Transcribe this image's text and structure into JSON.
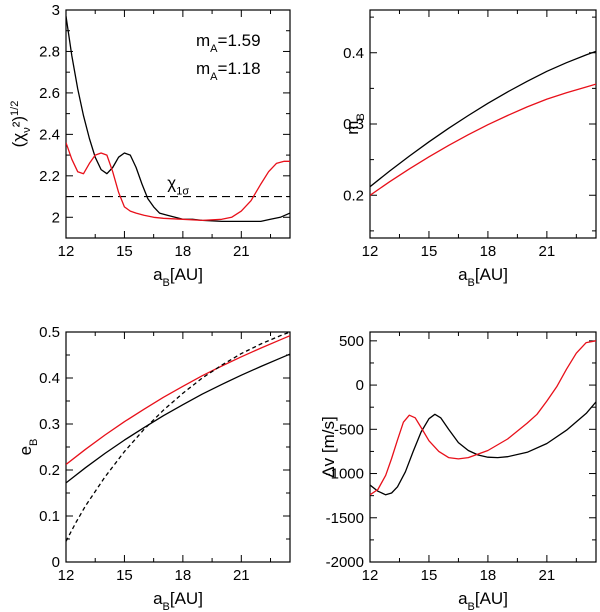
{
  "chart_data": [
    {
      "type": "line",
      "xlabel": "a",
      "xlabel_sub": "B",
      "xlabel_unit": "[AU]",
      "ylabel": "(χ",
      "ylabel_sub": "ν",
      "ylabel_rest": "²)",
      "ylabel_sup": "1/2",
      "xlim": [
        12,
        23.5
      ],
      "ylim": [
        1.9,
        3.0
      ],
      "xticks": [
        12,
        15,
        18,
        21
      ],
      "yticks": [
        2,
        2.2,
        2.4,
        2.6,
        2.8,
        3
      ],
      "yticklabels": [
        "2",
        "2.2",
        "2.4",
        "2.6",
        "2.8",
        "3"
      ],
      "annotations": [
        {
          "text": "m",
          "sub": "A",
          "rest": "=1.59",
          "color": "#000000"
        },
        {
          "text": "m",
          "sub": "A",
          "rest": "=1.18",
          "color": "#e8101a"
        }
      ],
      "hline": {
        "y": 2.1,
        "style": "dashed",
        "label": "χ",
        "label_sub": "1σ"
      },
      "series": [
        {
          "color": "#000000",
          "x": [
            12,
            12.3,
            12.6,
            12.9,
            13.2,
            13.5,
            13.8,
            14.1,
            14.4,
            14.7,
            15.0,
            15.3,
            15.6,
            15.9,
            16.2,
            16.5,
            16.8,
            17.2,
            17.6,
            18.0,
            18.5,
            19,
            20,
            21,
            22,
            22.5,
            23,
            23.5
          ],
          "y": [
            2.97,
            2.78,
            2.62,
            2.49,
            2.38,
            2.29,
            2.23,
            2.21,
            2.24,
            2.29,
            2.31,
            2.3,
            2.24,
            2.16,
            2.09,
            2.05,
            2.02,
            2.01,
            2.0,
            1.99,
            1.99,
            1.985,
            1.98,
            1.98,
            1.98,
            1.99,
            2.0,
            2.02
          ]
        },
        {
          "color": "#e8101a",
          "x": [
            12,
            12.3,
            12.6,
            12.9,
            13.2,
            13.5,
            13.8,
            14.1,
            14.4,
            14.7,
            15.0,
            15.3,
            15.6,
            16.0,
            16.5,
            17,
            18,
            19,
            20,
            20.5,
            21,
            21.5,
            22,
            22.4,
            22.8,
            23.2,
            23.5
          ],
          "y": [
            2.36,
            2.28,
            2.22,
            2.21,
            2.26,
            2.3,
            2.31,
            2.3,
            2.22,
            2.12,
            2.05,
            2.03,
            2.02,
            2.01,
            2.0,
            1.995,
            1.99,
            1.985,
            1.99,
            2.0,
            2.03,
            2.08,
            2.16,
            2.22,
            2.26,
            2.27,
            2.27
          ]
        }
      ]
    },
    {
      "type": "line",
      "xlabel": "a",
      "xlabel_sub": "B",
      "xlabel_unit": "[AU]",
      "ylabel": "m",
      "ylabel_sub": "B",
      "xlim": [
        12,
        23.5
      ],
      "ylim": [
        0.14,
        0.46
      ],
      "xticks": [
        12,
        15,
        18,
        21
      ],
      "yticks": [
        0.2,
        0.3,
        0.4
      ],
      "yticklabels": [
        "0.2",
        "0.3",
        "0.4"
      ],
      "series": [
        {
          "color": "#000000",
          "x": [
            12,
            13,
            14,
            15,
            16,
            17,
            18,
            19,
            20,
            21,
            22,
            23,
            23.5
          ],
          "y": [
            0.212,
            0.234,
            0.255,
            0.275,
            0.294,
            0.312,
            0.329,
            0.345,
            0.36,
            0.374,
            0.386,
            0.397,
            0.402
          ]
        },
        {
          "color": "#e8101a",
          "x": [
            12,
            13,
            14,
            15,
            16,
            17,
            18,
            19,
            20,
            21,
            22,
            23,
            23.5
          ],
          "y": [
            0.2,
            0.219,
            0.237,
            0.254,
            0.27,
            0.285,
            0.299,
            0.312,
            0.324,
            0.335,
            0.344,
            0.352,
            0.356
          ]
        }
      ]
    },
    {
      "type": "line",
      "xlabel": "a",
      "xlabel_sub": "B",
      "xlabel_unit": "[AU]",
      "ylabel": "e",
      "ylabel_sub": "B",
      "xlim": [
        12,
        23.5
      ],
      "ylim": [
        0,
        0.5
      ],
      "xticks": [
        12,
        15,
        18,
        21
      ],
      "yticks": [
        0,
        0.1,
        0.2,
        0.3,
        0.4,
        0.5
      ],
      "yticklabels": [
        "0",
        "0.1",
        "0.2",
        "0.3",
        "0.4",
        "0.5"
      ],
      "series": [
        {
          "color": "#000000",
          "x": [
            12,
            13,
            14,
            15,
            16,
            17,
            18,
            19,
            20,
            21,
            22,
            23,
            23.5
          ],
          "y": [
            0.172,
            0.205,
            0.236,
            0.265,
            0.292,
            0.318,
            0.342,
            0.365,
            0.386,
            0.406,
            0.425,
            0.443,
            0.452
          ]
        },
        {
          "color": "#e8101a",
          "x": [
            12,
            13,
            14,
            15,
            16,
            17,
            18,
            19,
            20,
            21,
            22,
            23,
            23.5
          ],
          "y": [
            0.212,
            0.245,
            0.276,
            0.305,
            0.332,
            0.358,
            0.382,
            0.405,
            0.426,
            0.446,
            0.465,
            0.483,
            0.492
          ]
        },
        {
          "color": "#000000",
          "dashed": true,
          "x": [
            12,
            12.5,
            13,
            14,
            15,
            16,
            17,
            18,
            19,
            20,
            21,
            22,
            23,
            23.5
          ],
          "y": [
            0.045,
            0.085,
            0.122,
            0.185,
            0.24,
            0.288,
            0.33,
            0.367,
            0.4,
            0.428,
            0.453,
            0.474,
            0.492,
            0.5
          ]
        }
      ]
    },
    {
      "type": "line",
      "xlabel": "a",
      "xlabel_sub": "B",
      "xlabel_unit": "[AU]",
      "ylabel": "Δv [m/s]",
      "xlim": [
        12,
        23.5
      ],
      "ylim": [
        -2000,
        600
      ],
      "xticks": [
        12,
        15,
        18,
        21
      ],
      "yticks": [
        -2000,
        -1500,
        -1000,
        -500,
        0,
        500
      ],
      "yticklabels": [
        "-2000",
        "-1500",
        "-1000",
        "-500",
        "0",
        "500"
      ],
      "series": [
        {
          "color": "#000000",
          "x": [
            12,
            12.4,
            12.8,
            13.1,
            13.4,
            13.8,
            14.2,
            14.6,
            15.0,
            15.3,
            15.6,
            16.0,
            16.5,
            17,
            17.5,
            18,
            18.5,
            19,
            20,
            21,
            22,
            23,
            23.5
          ],
          "y": [
            -1130,
            -1200,
            -1240,
            -1220,
            -1150,
            -980,
            -750,
            -530,
            -380,
            -330,
            -370,
            -500,
            -650,
            -740,
            -790,
            -815,
            -820,
            -810,
            -760,
            -660,
            -510,
            -320,
            -190
          ]
        },
        {
          "color": "#e8101a",
          "x": [
            12,
            12.4,
            12.8,
            13.1,
            13.4,
            13.7,
            14.0,
            14.3,
            14.6,
            15.0,
            15.5,
            16.0,
            16.5,
            17,
            18,
            19,
            20,
            20.5,
            21,
            21.5,
            22,
            22.5,
            23,
            23.5
          ],
          "y": [
            -1240,
            -1180,
            -1020,
            -830,
            -620,
            -420,
            -340,
            -370,
            -480,
            -630,
            -750,
            -820,
            -835,
            -820,
            -740,
            -610,
            -430,
            -330,
            -180,
            -20,
            180,
            360,
            480,
            500
          ]
        }
      ]
    }
  ]
}
